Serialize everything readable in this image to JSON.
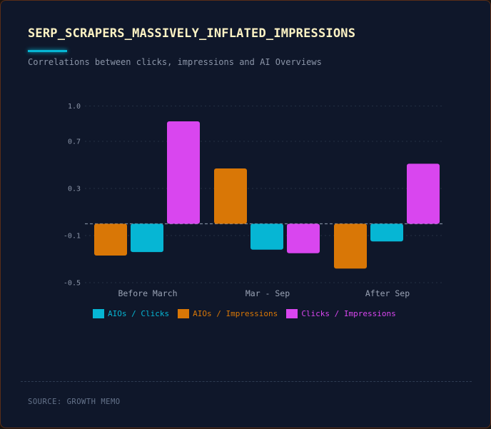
{
  "title": "SERP_SCRAPERS_MASSIVELY_INFLATED_IMPRESSIONS",
  "subtitle": "Correlations between clicks, impressions and AI Overviews",
  "source": "SOURCE: GROWTH MEMO",
  "colors": {
    "background": "#0f172a",
    "accent": "#06b6d4"
  },
  "chart_data": {
    "type": "bar",
    "categories": [
      "Before March",
      "Mar - Sep",
      "After Sep"
    ],
    "series": [
      {
        "name": "AIOs / Impressions",
        "color": "#d97706",
        "values": [
          -0.27,
          0.47,
          -0.38
        ]
      },
      {
        "name": "AIOs / Clicks",
        "color": "#06b6d4",
        "values": [
          -0.24,
          -0.22,
          -0.15
        ]
      },
      {
        "name": "Clicks / Impressions",
        "color": "#d946ef",
        "values": [
          0.87,
          -0.25,
          0.51
        ]
      }
    ],
    "legend_order": [
      1,
      0,
      2
    ],
    "y_ticks": [
      "1.0",
      "0.7",
      "0.3",
      "-0.1",
      "-0.5"
    ],
    "ylim": [
      -0.5,
      1.0
    ],
    "zero_line": "dashed",
    "grid": true,
    "legend_position": "bottom-left",
    "title": "",
    "xlabel": "",
    "ylabel": ""
  }
}
